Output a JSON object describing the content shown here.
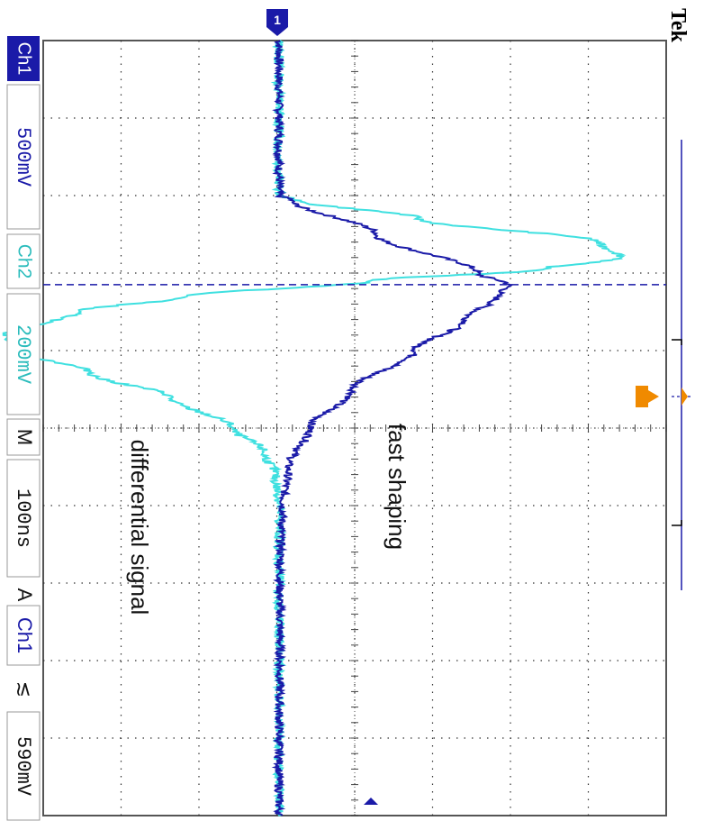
{
  "header": {
    "brand": "Tek",
    "channel_marker": "1"
  },
  "readouts": {
    "ch1_label": "Ch1",
    "ch1_scale": "500mV",
    "ch2_label": "Ch2",
    "ch2_scale": "200mV",
    "time_label": "M",
    "time_scale": "100ns",
    "trigger_mode": "A",
    "trigger_source": "Ch1",
    "trigger_slope": "≲",
    "trigger_level": "590mV"
  },
  "colors": {
    "ch1": "#1a1aa8",
    "ch2": "#3fe0e0",
    "grid": "#333333",
    "trigger": "#f08a00"
  },
  "chart_data": {
    "type": "line",
    "orientation": "rotated-90-clockwise",
    "annotations": [
      "fast shaping",
      "differential signal"
    ],
    "grid": true,
    "x_divisions": 10,
    "y_divisions": 8,
    "x_unit_per_div": "100ns",
    "series": [
      {
        "channel": "Ch1",
        "name": "fast shaping",
        "scale": "500mV",
        "x_div": [
          0,
          1,
          2,
          2.05,
          2.5,
          3.0,
          3.15,
          3.3,
          3.6,
          4.0,
          4.5,
          5.0,
          5.5,
          6.0,
          6.5,
          7.0,
          8.0,
          9.0,
          10.0
        ],
        "y_div": [
          0,
          0,
          0,
          0.15,
          1.25,
          2.55,
          2.95,
          2.8,
          2.4,
          1.75,
          0.95,
          0.4,
          0.12,
          0.05,
          0.02,
          0.01,
          0.01,
          0,
          0
        ]
      },
      {
        "channel": "Ch2",
        "name": "differential signal",
        "scale": "200mV",
        "x_div": [
          0,
          1,
          2,
          2.05,
          2.3,
          2.6,
          2.8,
          2.95,
          3.1,
          3.3,
          3.5,
          3.8,
          4.0,
          4.3,
          4.6,
          5.0,
          5.3,
          5.6,
          6.0,
          7.0,
          8.0,
          9.0,
          10.0
        ],
        "y_div": [
          0,
          0,
          0,
          0.2,
          1.8,
          4.1,
          4.4,
          3.4,
          1.2,
          -1.2,
          -2.6,
          -3.5,
          -3.3,
          -2.4,
          -1.4,
          -0.6,
          -0.2,
          -0.05,
          0,
          0,
          0,
          0,
          0
        ]
      }
    ]
  }
}
